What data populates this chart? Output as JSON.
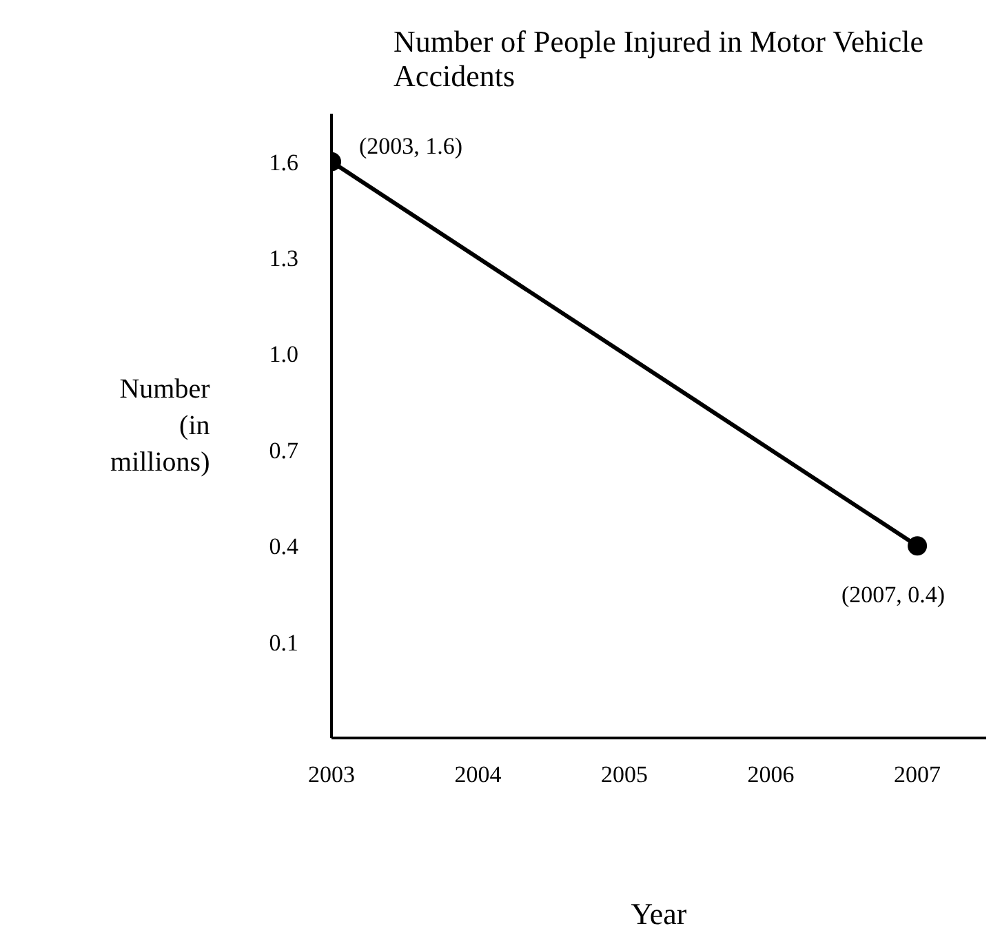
{
  "chart_data": {
    "type": "line",
    "title": "Number of People Injured in Motor Vehicle Accidents",
    "xlabel": "Year",
    "ylabel": "Number (in millions)",
    "x": [
      2003,
      2007
    ],
    "series": [
      {
        "color": "#000000",
        "values": [
          1.6,
          0.4
        ]
      }
    ],
    "marker": "circle",
    "line_style": "solid",
    "grid": false,
    "xlim": [
      2003,
      2007.47
    ],
    "xticks": [
      2003,
      2004,
      2005,
      2006,
      2007
    ],
    "ylim": [
      -0.2,
      1.75
    ],
    "yticks": [
      0.1,
      0.4,
      0.7,
      {
        "value": 1.0,
        "label": "1.0"
      },
      1.3,
      1.6
    ],
    "annotations": [
      {
        "text": "(2003, 1.6)",
        "x": 2003,
        "y": 1.6
      },
      {
        "text": "(2007, 0.4)",
        "x": 2007,
        "y": 0.4
      }
    ]
  }
}
